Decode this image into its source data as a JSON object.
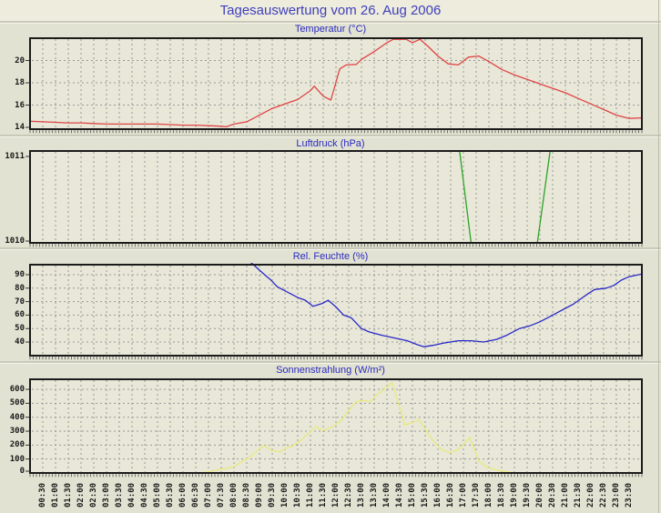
{
  "page": {
    "title": "Tagesauswertung vom 26. Aug 2006",
    "title_color": "#4040bc",
    "chart_title_color": "#2a2ac0"
  },
  "time_axis": {
    "start": "00:30",
    "end": "23:30",
    "step_minutes": 30,
    "labels": [
      "00:30",
      "01:00",
      "01:30",
      "02:00",
      "02:30",
      "03:00",
      "03:30",
      "04:00",
      "04:30",
      "05:00",
      "05:30",
      "06:00",
      "06:30",
      "07:00",
      "07:30",
      "08:00",
      "08:30",
      "09:00",
      "09:30",
      "10:00",
      "10:30",
      "11:00",
      "11:30",
      "12:00",
      "12:30",
      "13:00",
      "13:30",
      "14:00",
      "14:30",
      "15:00",
      "15:30",
      "16:00",
      "16:30",
      "17:00",
      "17:30",
      "18:00",
      "18:30",
      "19:00",
      "19:30",
      "20:00",
      "20:30",
      "21:00",
      "21:30",
      "22:00",
      "22:30",
      "23:00",
      "23:30"
    ]
  },
  "chart_data": [
    {
      "type": "line",
      "title": "Temperatur (°C)",
      "color": "#e04545",
      "xlim": [
        0,
        24
      ],
      "ylim": [
        13.84,
        22.0
      ],
      "yticks": [
        14,
        16,
        18,
        20
      ],
      "grid": true,
      "points": [
        [
          0,
          14.55
        ],
        [
          0.5,
          14.5
        ],
        [
          1,
          14.45
        ],
        [
          1.5,
          14.4
        ],
        [
          2,
          14.4
        ],
        [
          2.5,
          14.35
        ],
        [
          3,
          14.3
        ],
        [
          4,
          14.3
        ],
        [
          5,
          14.3
        ],
        [
          5.5,
          14.25
        ],
        [
          6,
          14.2
        ],
        [
          6.5,
          14.2
        ],
        [
          7,
          14.15
        ],
        [
          7.5,
          14.1
        ],
        [
          7.7,
          14.05
        ],
        [
          8,
          14.3
        ],
        [
          8.5,
          14.5
        ],
        [
          9,
          15.1
        ],
        [
          9.5,
          15.7
        ],
        [
          10,
          16.1
        ],
        [
          10.5,
          16.5
        ],
        [
          11,
          17.3
        ],
        [
          11.15,
          17.7
        ],
        [
          11.5,
          16.8
        ],
        [
          11.8,
          16.45
        ],
        [
          12.15,
          19.25
        ],
        [
          12.4,
          19.6
        ],
        [
          12.8,
          19.65
        ],
        [
          13,
          20.1
        ],
        [
          13.5,
          20.8
        ],
        [
          14,
          21.6
        ],
        [
          14.25,
          21.9
        ],
        [
          14.75,
          21.9
        ],
        [
          15,
          21.6
        ],
        [
          15.3,
          21.9
        ],
        [
          15.6,
          21.3
        ],
        [
          16,
          20.4
        ],
        [
          16.4,
          19.7
        ],
        [
          16.8,
          19.6
        ],
        [
          17.2,
          20.3
        ],
        [
          17.6,
          20.4
        ],
        [
          18,
          19.9
        ],
        [
          18.5,
          19.2
        ],
        [
          19,
          18.7
        ],
        [
          19.5,
          18.3
        ],
        [
          20,
          17.9
        ],
        [
          20.5,
          17.5
        ],
        [
          21,
          17.1
        ],
        [
          21.5,
          16.6
        ],
        [
          22,
          16.1
        ],
        [
          22.5,
          15.6
        ],
        [
          23,
          15.1
        ],
        [
          23.5,
          14.8
        ],
        [
          24,
          14.85
        ]
      ]
    },
    {
      "type": "line",
      "title": "Luftdruck (hPa)",
      "color": "#2aa42a",
      "xlim": [
        0,
        24
      ],
      "ylim": [
        1010,
        1011
      ],
      "yticks": [
        1010,
        1011
      ],
      "grid": false,
      "points": [
        [
          0,
          1011
        ],
        [
          16.85,
          1011
        ],
        [
          17.3,
          1010
        ],
        [
          19.9,
          1010
        ],
        [
          20.4,
          1011
        ],
        [
          24,
          1011
        ]
      ]
    },
    {
      "type": "line",
      "title": "Rel. Feuchte (%)",
      "color": "#2828c8",
      "xlim": [
        0,
        24
      ],
      "ylim": [
        29.9,
        97.4
      ],
      "yticks": [
        40,
        50,
        60,
        70,
        80,
        90
      ],
      "grid": true,
      "points": [
        [
          0,
          101
        ],
        [
          8.55,
          101
        ],
        [
          9.2,
          90
        ],
        [
          9.45,
          86
        ],
        [
          9.7,
          81
        ],
        [
          10.1,
          77
        ],
        [
          10.5,
          73
        ],
        [
          10.8,
          71
        ],
        [
          11.1,
          66.5
        ],
        [
          11.45,
          68.5
        ],
        [
          11.7,
          71
        ],
        [
          12,
          66
        ],
        [
          12.3,
          60
        ],
        [
          12.6,
          58
        ],
        [
          13,
          50
        ],
        [
          13.3,
          47.5
        ],
        [
          13.8,
          45
        ],
        [
          14.3,
          43
        ],
        [
          14.8,
          41
        ],
        [
          15.2,
          38
        ],
        [
          15.45,
          36.5
        ],
        [
          15.8,
          37.5
        ],
        [
          16.3,
          39.5
        ],
        [
          16.8,
          41
        ],
        [
          17.3,
          41
        ],
        [
          17.8,
          40
        ],
        [
          18.3,
          42
        ],
        [
          18.7,
          45
        ],
        [
          19.2,
          50
        ],
        [
          19.6,
          52
        ],
        [
          20,
          55
        ],
        [
          20.3,
          58
        ],
        [
          20.7,
          62
        ],
        [
          21,
          65
        ],
        [
          21.3,
          68
        ],
        [
          21.6,
          72
        ],
        [
          21.9,
          76
        ],
        [
          22.15,
          79
        ],
        [
          22.6,
          80
        ],
        [
          22.9,
          82
        ],
        [
          23.2,
          86
        ],
        [
          23.5,
          88.5
        ],
        [
          24,
          90.5
        ]
      ]
    },
    {
      "type": "line",
      "title": "Sonnenstrahlung (W/m²)",
      "color": "#e9e97e",
      "xlim": [
        0,
        24
      ],
      "ylim": [
        0,
        672
      ],
      "yticks": [
        0,
        100,
        200,
        300,
        400,
        500,
        600
      ],
      "grid": true,
      "points": [
        [
          0,
          0
        ],
        [
          6.6,
          0
        ],
        [
          7,
          10
        ],
        [
          7.4,
          25
        ],
        [
          7.7,
          32
        ],
        [
          8,
          45
        ],
        [
          8.3,
          80
        ],
        [
          8.6,
          110
        ],
        [
          9,
          175
        ],
        [
          9.2,
          195
        ],
        [
          9.5,
          160
        ],
        [
          9.8,
          150
        ],
        [
          10.1,
          185
        ],
        [
          10.3,
          195
        ],
        [
          10.6,
          230
        ],
        [
          11,
          300
        ],
        [
          11.2,
          335
        ],
        [
          11.5,
          305
        ],
        [
          11.9,
          335
        ],
        [
          12.2,
          375
        ],
        [
          12.5,
          450
        ],
        [
          12.8,
          510
        ],
        [
          13.1,
          520
        ],
        [
          13.35,
          510
        ],
        [
          13.6,
          560
        ],
        [
          13.9,
          600
        ],
        [
          14.2,
          650
        ],
        [
          14.45,
          500
        ],
        [
          14.7,
          345
        ],
        [
          15,
          360
        ],
        [
          15.25,
          385
        ],
        [
          15.55,
          300
        ],
        [
          15.8,
          235
        ],
        [
          16.1,
          175
        ],
        [
          16.45,
          145
        ],
        [
          16.8,
          170
        ],
        [
          17,
          205
        ],
        [
          17.25,
          255
        ],
        [
          17.6,
          85
        ],
        [
          17.95,
          38
        ],
        [
          18.3,
          22
        ],
        [
          18.6,
          12
        ],
        [
          18.95,
          2
        ],
        [
          19.3,
          0
        ],
        [
          24,
          0
        ]
      ]
    }
  ]
}
